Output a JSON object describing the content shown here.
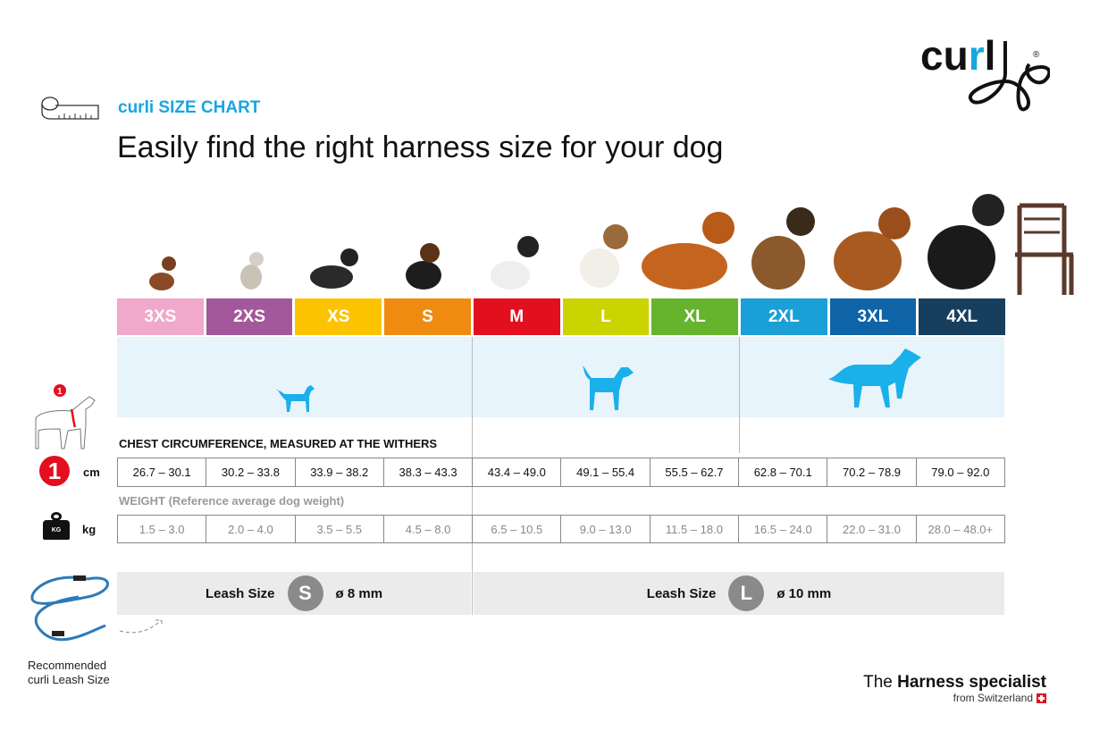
{
  "brand": {
    "logo_text": "curli",
    "kicker": "curli SIZE CHART",
    "title": "Easily find the right harness size for your dog"
  },
  "sizes": [
    {
      "label": "3XS",
      "color": "#f0a8cc"
    },
    {
      "label": "2XS",
      "color": "#a2589b"
    },
    {
      "label": "XS",
      "color": "#fcc400"
    },
    {
      "label": "S",
      "color": "#ef8b10"
    },
    {
      "label": "M",
      "color": "#e30f1f"
    },
    {
      "label": "L",
      "color": "#cbd300"
    },
    {
      "label": "XL",
      "color": "#66b32e"
    },
    {
      "label": "2XL",
      "color": "#1a9fd6"
    },
    {
      "label": "3XL",
      "color": "#0e64a7"
    },
    {
      "label": "4XL",
      "color": "#173e5d"
    }
  ],
  "chest": {
    "header": "CHEST CIRCUMFERENCE, MEASURED AT THE WITHERS",
    "unit": "cm",
    "badge": "1",
    "values": [
      "26.7 – 30.1",
      "30.2 – 33.8",
      "33.9 – 38.2",
      "38.3 – 43.3",
      "43.4 – 49.0",
      "49.1 – 55.4",
      "55.5 – 62.7",
      "62.8 – 70.1",
      "70.2 – 78.9",
      "79.0 – 92.0"
    ]
  },
  "weight": {
    "header": "WEIGHT (Reference average dog weight)",
    "unit": "kg",
    "icon_text": "KG",
    "values": [
      "1.5 – 3.0",
      "2.0 – 4.0",
      "3.5 – 5.5",
      "4.5 – 8.0",
      "6.5 – 10.5",
      "9.0 – 13.0",
      "11.5 – 18.0",
      "16.5 – 24.0",
      "22.0 – 31.0",
      "28.0 – 48.0+"
    ]
  },
  "leash": {
    "caption_line1": "Recommended",
    "caption_line2": "curli Leash Size",
    "small": {
      "label": "Leash Size",
      "size": "S",
      "diameter": "ø 8 mm"
    },
    "large": {
      "label": "Leash Size",
      "size": "L",
      "diameter": "ø 10 mm"
    }
  },
  "footer": {
    "the": "The",
    "bold": "Harness specialist",
    "sub": "from Switzerland"
  },
  "colors": {
    "accent": "#1aa5e0",
    "silhouette": "#1ab0ea",
    "band": "#e8f4fc"
  }
}
